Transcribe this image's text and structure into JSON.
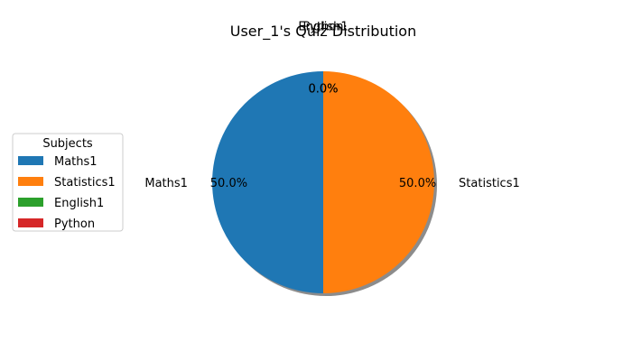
{
  "chart_data": {
    "type": "pie",
    "title": "User_1's Quiz Distribution",
    "categories": [
      "Maths1",
      "Statistics1",
      "English1",
      "Python"
    ],
    "values": [
      50.0,
      50.0,
      0.0,
      0.0
    ],
    "percent_labels": [
      "50.0%",
      "50.0%",
      "0.0%",
      "0.0%"
    ],
    "colors": [
      "#1f77b4",
      "#ff7f0e",
      "#2ca02c",
      "#d62728"
    ],
    "start_angle_deg": 90,
    "shadow": true,
    "legend": {
      "title": "Subjects",
      "placement": "center-left",
      "entries": [
        "Maths1",
        "Statistics1",
        "English1",
        "Python"
      ]
    }
  }
}
